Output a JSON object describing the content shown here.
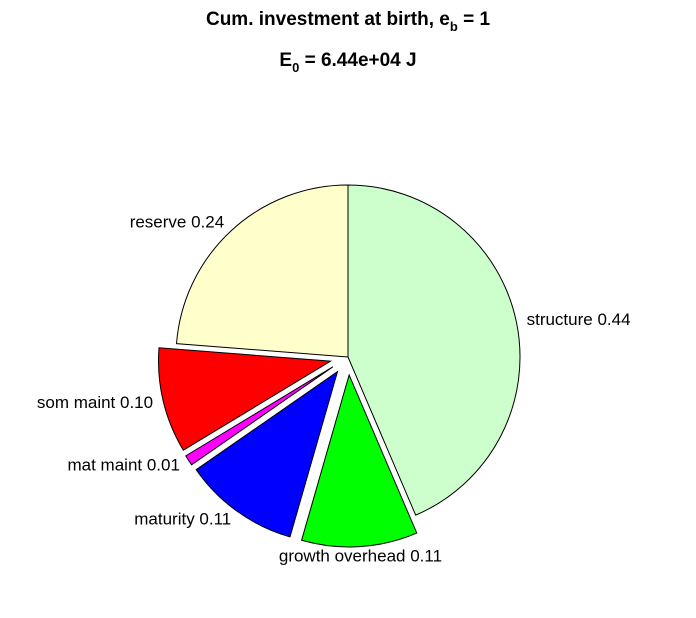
{
  "chart_data": {
    "type": "pie",
    "title": {
      "line1_main": "Cum. investment at birth, e",
      "line1_sub": "b",
      "line1_tail": " = 1",
      "line2_main": "E",
      "line2_sub": "0",
      "line2_tail": " = 6.44e+04 J"
    },
    "slices": [
      {
        "name": "structure",
        "value": 0.44,
        "label": "structure 0.44",
        "color": "#CCFFCC",
        "exploded": false
      },
      {
        "name": "growth-overhead",
        "value": 0.11,
        "label": "growth overhead 0.11",
        "color": "#00FF00",
        "exploded": true
      },
      {
        "name": "maturity",
        "value": 0.11,
        "label": "maturity 0.11",
        "color": "#0000FF",
        "exploded": true
      },
      {
        "name": "mat-maint",
        "value": 0.01,
        "label": "mat maint 0.01",
        "color": "#FF00FF",
        "exploded": true
      },
      {
        "name": "som-maint",
        "value": 0.1,
        "label": "som maint 0.10",
        "color": "#FF0000",
        "exploded": true
      },
      {
        "name": "reserve",
        "value": 0.24,
        "label": "reserve 0.24",
        "color": "#FFFFCC",
        "exploded": false
      }
    ]
  }
}
